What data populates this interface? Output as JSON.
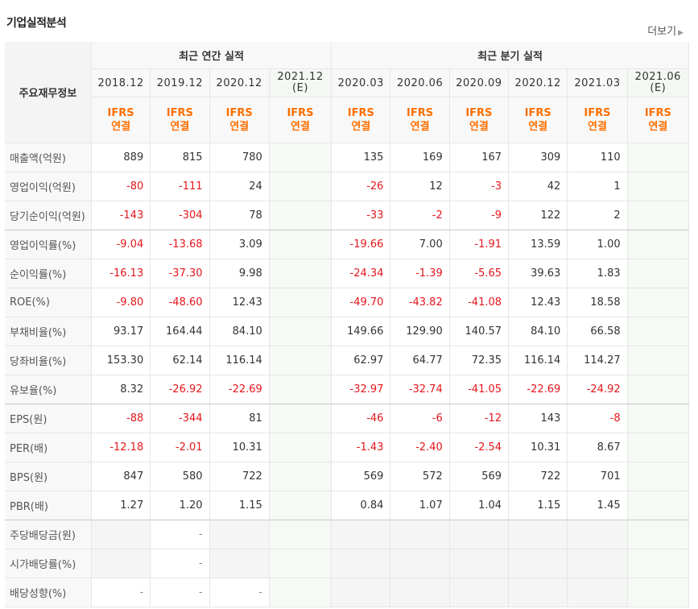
{
  "header": {
    "title": "기업실적분석",
    "more_label": "더보기"
  },
  "table": {
    "row_header": "주요재무정보",
    "groups": {
      "annual": "최근 연간 실적",
      "quarter": "최근 분기 실적"
    },
    "columns": [
      {
        "date": "2018.12",
        "basis1": "IFRS",
        "basis2": "연결",
        "estimate": false
      },
      {
        "date": "2019.12",
        "basis1": "IFRS",
        "basis2": "연결",
        "estimate": false
      },
      {
        "date": "2020.12",
        "basis1": "IFRS",
        "basis2": "연결",
        "estimate": false
      },
      {
        "date": "2021.12",
        "date_sub": "(E)",
        "basis1": "IFRS",
        "basis2": "연결",
        "estimate": true
      },
      {
        "date": "2020.03",
        "basis1": "IFRS",
        "basis2": "연결",
        "estimate": false
      },
      {
        "date": "2020.06",
        "basis1": "IFRS",
        "basis2": "연결",
        "estimate": false
      },
      {
        "date": "2020.09",
        "basis1": "IFRS",
        "basis2": "연결",
        "estimate": false
      },
      {
        "date": "2020.12",
        "basis1": "IFRS",
        "basis2": "연결",
        "estimate": false
      },
      {
        "date": "2021.03",
        "basis1": "IFRS",
        "basis2": "연결",
        "estimate": false
      },
      {
        "date": "2021.06",
        "date_sub": "(E)",
        "basis1": "IFRS",
        "basis2": "연결",
        "estimate": true
      }
    ],
    "rows": [
      {
        "label": "매출액(억원)",
        "values": [
          "889",
          "815",
          "780",
          "",
          "135",
          "169",
          "167",
          "309",
          "110",
          ""
        ]
      },
      {
        "label": "영업이익(억원)",
        "values": [
          "-80",
          "-111",
          "24",
          "",
          "-26",
          "12",
          "-3",
          "42",
          "1",
          ""
        ]
      },
      {
        "label": "당기순이익(억원)",
        "values": [
          "-143",
          "-304",
          "78",
          "",
          "-33",
          "-2",
          "-9",
          "122",
          "2",
          ""
        ]
      },
      {
        "label": "영업이익률(%)",
        "values": [
          "-9.04",
          "-13.68",
          "3.09",
          "",
          "-19.66",
          "7.00",
          "-1.91",
          "13.59",
          "1.00",
          ""
        ]
      },
      {
        "label": "순이익률(%)",
        "values": [
          "-16.13",
          "-37.30",
          "9.98",
          "",
          "-24.34",
          "-1.39",
          "-5.65",
          "39.63",
          "1.83",
          ""
        ]
      },
      {
        "label": "ROE(%)",
        "values": [
          "-9.80",
          "-48.60",
          "12.43",
          "",
          "-49.70",
          "-43.82",
          "-41.08",
          "12.43",
          "18.58",
          ""
        ]
      },
      {
        "label": "부채비율(%)",
        "values": [
          "93.17",
          "164.44",
          "84.10",
          "",
          "149.66",
          "129.90",
          "140.57",
          "84.10",
          "66.58",
          ""
        ]
      },
      {
        "label": "당좌비율(%)",
        "values": [
          "153.30",
          "62.14",
          "116.14",
          "",
          "62.97",
          "64.77",
          "72.35",
          "116.14",
          "114.27",
          ""
        ]
      },
      {
        "label": "유보율(%)",
        "values": [
          "8.32",
          "-26.92",
          "-22.69",
          "",
          "-32.97",
          "-32.74",
          "-41.05",
          "-22.69",
          "-24.92",
          ""
        ]
      },
      {
        "label": "EPS(원)",
        "values": [
          "-88",
          "-344",
          "81",
          "",
          "-46",
          "-6",
          "-12",
          "143",
          "-8",
          ""
        ]
      },
      {
        "label": "PER(배)",
        "values": [
          "-12.18",
          "-2.01",
          "10.31",
          "",
          "-1.43",
          "-2.40",
          "-2.54",
          "10.31",
          "8.67",
          ""
        ]
      },
      {
        "label": "BPS(원)",
        "values": [
          "847",
          "580",
          "722",
          "",
          "569",
          "572",
          "569",
          "722",
          "701",
          ""
        ]
      },
      {
        "label": "PBR(배)",
        "values": [
          "1.27",
          "1.20",
          "1.15",
          "",
          "0.84",
          "1.07",
          "1.04",
          "1.15",
          "1.45",
          ""
        ]
      },
      {
        "label": "주당배당금(원)",
        "values": [
          "",
          "-",
          "",
          "",
          "",
          "",
          "",
          "",
          "",
          ""
        ]
      },
      {
        "label": "시가배당률(%)",
        "values": [
          "",
          "-",
          "",
          "",
          "",
          "",
          "",
          "",
          "",
          ""
        ]
      },
      {
        "label": "배당성향(%)",
        "values": [
          "-",
          "-",
          "-",
          "",
          "",
          "",
          "",
          "",
          "",
          ""
        ]
      }
    ]
  },
  "colors": {
    "negative": "#e4161b",
    "ifrs": "#ff6f00",
    "estimate_bg": "#f5faf4"
  }
}
